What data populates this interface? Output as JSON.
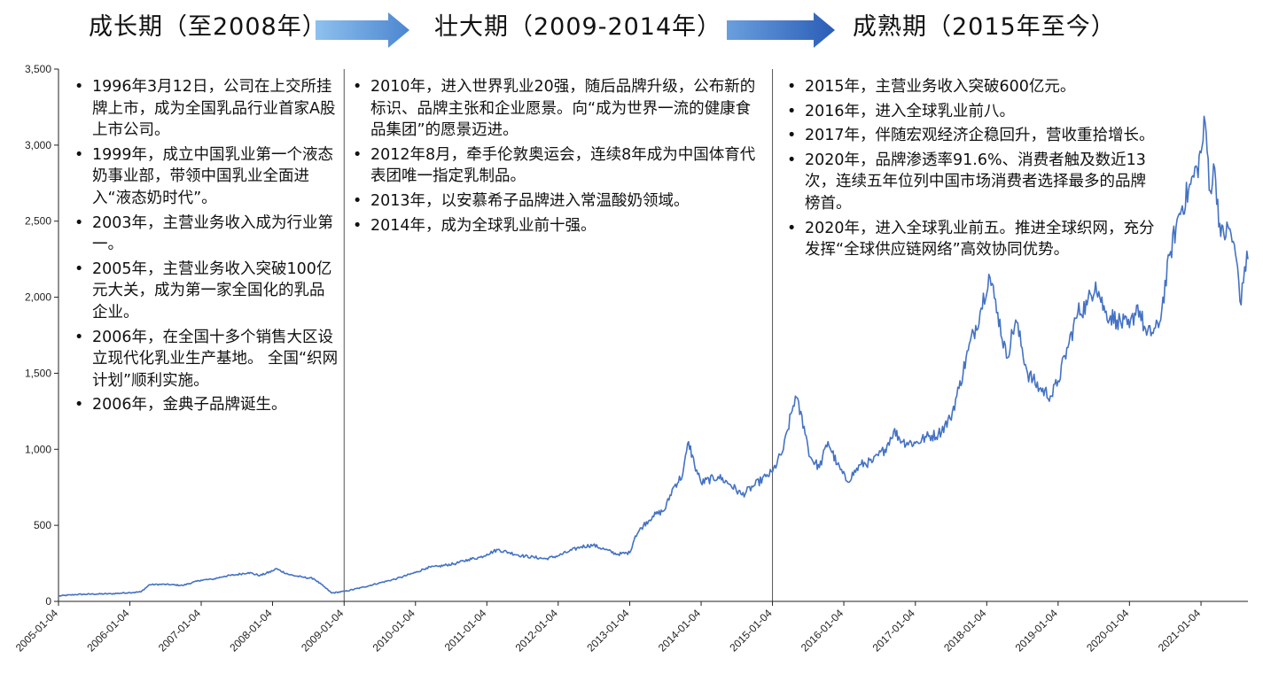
{
  "phases": [
    {
      "title": "成长期（至2008年）",
      "notes": [
        "1996年3月12日，公司在上交所挂牌上市，成为全国乳品行业首家A股上市公司。",
        "1999年，成立中国乳业第一个液态奶事业部，带领中国乳业全面进入“液态奶时代”。",
        "2003年，主营业务收入成为行业第一。",
        "2005年，主营业务收入突破100亿元大关，成为第一家全国化的乳品企业。",
        "2006年，在全国十多个销售大区设立现代化乳业生产基地。 全国“织网计划”顺利实施。",
        "2006年，金典子品牌诞生。"
      ]
    },
    {
      "title": "壮大期（2009-2014年）",
      "notes": [
        "2010年，进入世界乳业20强，随后品牌升级，公布新的标识、品牌主张和企业愿景。向“成为世界一流的健康食品集团”的愿景迈进。",
        "2012年8月，牵手伦敦奥运会，连续8年成为中国体育代表团唯一指定乳制品。",
        "2013年，以安慕希子品牌进入常温酸奶领域。",
        "2014年，成为全球乳业前十强。"
      ]
    },
    {
      "title": "成熟期（2015年至今）",
      "notes": [
        "2015年，主营业务收入突破600亿元。",
        "2016年，进入全球乳业前八。",
        "2017年，伴随宏观经济企稳回升，营收重拾增长。",
        "2020年，品牌渗透率91.6%、消费者触及数近13次，连续五年位列中国市场消费者选择最多的品牌榜首。",
        "2020年，进入全球乳业前五。推进全球织网，充分发挥“全球供应链网络”高效协同优势。"
      ]
    }
  ],
  "colors": {
    "line": "#4472C4",
    "arrow_light": "#5B9BD5",
    "arrow_dark": "#2E5FB8",
    "axis": "#222222",
    "divider": "#555555"
  },
  "chart_data": {
    "type": "line",
    "title": "",
    "xlabel": "",
    "ylabel": "",
    "ylim": [
      0,
      3500
    ],
    "xlim": [
      "2005-01-04",
      "2021-09-01"
    ],
    "grid": false,
    "y_ticks": [
      "0",
      "500",
      "1,000",
      "1,500",
      "2,000",
      "2,500",
      "3,000",
      "3,500"
    ],
    "y_tick_values": [
      0,
      500,
      1000,
      1500,
      2000,
      2500,
      3000,
      3500
    ],
    "x_ticks": [
      "2005-01-04",
      "2006-01-04",
      "2007-01-04",
      "2008-01-04",
      "2009-01-04",
      "2010-01-04",
      "2011-01-04",
      "2012-01-04",
      "2013-01-04",
      "2014-01-04",
      "2015-01-04",
      "2016-01-04",
      "2017-01-04",
      "2018-01-04",
      "2019-01-04",
      "2020-01-04",
      "2021-01-04"
    ],
    "phase_dividers": [
      "2009-01-04",
      "2015-01-04"
    ],
    "series": [
      {
        "points": [
          [
            "2005-01-04",
            35
          ],
          [
            "2005-04-01",
            45
          ],
          [
            "2005-07-01",
            48
          ],
          [
            "2005-10-01",
            50
          ],
          [
            "2006-01-04",
            58
          ],
          [
            "2006-03-01",
            62
          ],
          [
            "2006-04-15",
            110
          ],
          [
            "2006-07-01",
            112
          ],
          [
            "2006-10-01",
            105
          ],
          [
            "2007-01-04",
            140
          ],
          [
            "2007-03-01",
            145
          ],
          [
            "2007-05-01",
            165
          ],
          [
            "2007-07-01",
            175
          ],
          [
            "2007-09-01",
            190
          ],
          [
            "2007-11-01",
            170
          ],
          [
            "2008-01-04",
            200
          ],
          [
            "2008-01-20",
            215
          ],
          [
            "2008-04-01",
            175
          ],
          [
            "2008-06-01",
            160
          ],
          [
            "2008-08-01",
            150
          ],
          [
            "2008-09-20",
            100
          ],
          [
            "2008-11-01",
            55
          ],
          [
            "2009-01-04",
            65
          ],
          [
            "2009-04-01",
            90
          ],
          [
            "2009-07-01",
            120
          ],
          [
            "2009-10-01",
            150
          ],
          [
            "2010-01-04",
            190
          ],
          [
            "2010-03-01",
            220
          ],
          [
            "2010-05-01",
            230
          ],
          [
            "2010-08-01",
            250
          ],
          [
            "2010-10-01",
            275
          ],
          [
            "2010-12-01",
            290
          ],
          [
            "2011-01-04",
            310
          ],
          [
            "2011-03-01",
            340
          ],
          [
            "2011-05-01",
            320
          ],
          [
            "2011-07-01",
            300
          ],
          [
            "2011-09-01",
            290
          ],
          [
            "2011-11-01",
            280
          ],
          [
            "2012-01-04",
            300
          ],
          [
            "2012-03-01",
            330
          ],
          [
            "2012-05-01",
            360
          ],
          [
            "2012-07-01",
            370
          ],
          [
            "2012-09-01",
            340
          ],
          [
            "2012-11-01",
            310
          ],
          [
            "2013-01-04",
            320
          ],
          [
            "2013-02-01",
            430
          ],
          [
            "2013-03-15",
            500
          ],
          [
            "2013-05-01",
            560
          ],
          [
            "2013-07-01",
            600
          ],
          [
            "2013-08-15",
            750
          ],
          [
            "2013-10-01",
            830
          ],
          [
            "2013-11-01",
            1050
          ],
          [
            "2013-12-01",
            900
          ],
          [
            "2014-01-04",
            780
          ],
          [
            "2014-04-01",
            820
          ],
          [
            "2014-06-01",
            770
          ],
          [
            "2014-08-01",
            700
          ],
          [
            "2014-10-01",
            760
          ],
          [
            "2014-12-01",
            820
          ],
          [
            "2015-01-04",
            850
          ],
          [
            "2015-03-01",
            1000
          ],
          [
            "2015-05-01",
            1350
          ],
          [
            "2015-06-15",
            1150
          ],
          [
            "2015-07-15",
            950
          ],
          [
            "2015-09-01",
            880
          ],
          [
            "2015-10-15",
            1050
          ],
          [
            "2015-12-01",
            900
          ],
          [
            "2016-01-20",
            790
          ],
          [
            "2016-04-01",
            900
          ],
          [
            "2016-06-01",
            920
          ],
          [
            "2016-08-01",
            1000
          ],
          [
            "2016-09-15",
            1120
          ],
          [
            "2016-11-01",
            1050
          ],
          [
            "2017-01-04",
            1040
          ],
          [
            "2017-03-01",
            1080
          ],
          [
            "2017-05-01",
            1100
          ],
          [
            "2017-07-01",
            1200
          ],
          [
            "2017-08-15",
            1400
          ],
          [
            "2017-10-01",
            1650
          ],
          [
            "2017-12-01",
            1900
          ],
          [
            "2018-01-15",
            2150
          ],
          [
            "2018-03-01",
            1900
          ],
          [
            "2018-04-15",
            1600
          ],
          [
            "2018-06-01",
            1850
          ],
          [
            "2018-08-01",
            1500
          ],
          [
            "2018-10-01",
            1400
          ],
          [
            "2018-12-01",
            1350
          ],
          [
            "2019-01-04",
            1450
          ],
          [
            "2019-03-01",
            1700
          ],
          [
            "2019-04-15",
            1900
          ],
          [
            "2019-06-01",
            1950
          ],
          [
            "2019-07-15",
            2100
          ],
          [
            "2019-09-01",
            1900
          ],
          [
            "2019-11-01",
            1850
          ],
          [
            "2020-01-04",
            1800
          ],
          [
            "2020-02-15",
            1950
          ],
          [
            "2020-04-01",
            1750
          ],
          [
            "2020-06-01",
            1800
          ],
          [
            "2020-08-01",
            2300
          ],
          [
            "2020-09-15",
            2550
          ],
          [
            "2020-11-01",
            2700
          ],
          [
            "2020-12-15",
            2850
          ],
          [
            "2021-01-04",
            2950
          ],
          [
            "2021-01-25",
            3150
          ],
          [
            "2021-02-20",
            2700
          ],
          [
            "2021-03-15",
            2850
          ],
          [
            "2021-04-15",
            2400
          ],
          [
            "2021-06-01",
            2450
          ],
          [
            "2021-07-10",
            2200
          ],
          [
            "2021-07-28",
            1950
          ],
          [
            "2021-08-15",
            2200
          ],
          [
            "2021-09-01",
            2250
          ]
        ]
      }
    ]
  }
}
